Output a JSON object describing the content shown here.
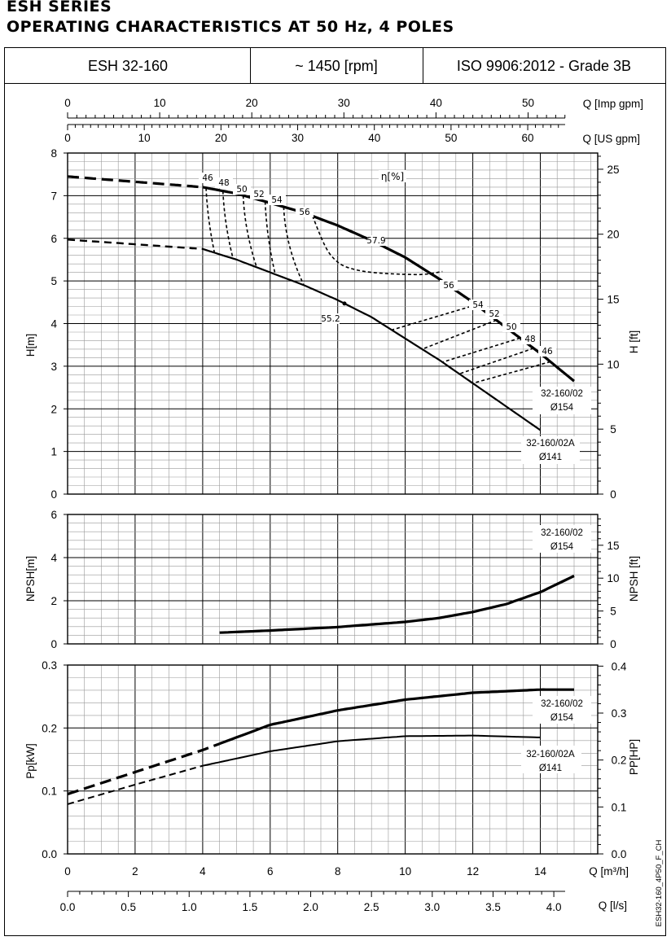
{
  "header": {
    "line1": "ESH SERIES",
    "line2": "OPERATING CHARACTERISTICS AT 50 Hz, 4 POLES"
  },
  "infobar": {
    "model": "ESH 32-160",
    "speed": "~ 1450 [rpm]",
    "standard": "ISO 9906:2012 - Grade 3B"
  },
  "side_code": "ESH32-160_4P50_F_CH",
  "axes": {
    "q_imp_label": "Q [Imp gpm]",
    "q_imp_ticks": [
      "0",
      "10",
      "20",
      "30",
      "40",
      "50"
    ],
    "q_us_label": "Q [US gpm]",
    "q_us_ticks": [
      "0",
      "10",
      "20",
      "30",
      "40",
      "50",
      "60"
    ],
    "q_m3h_label": "Q [m³/h]",
    "q_m3h_ticks": [
      "0",
      "2",
      "4",
      "6",
      "8",
      "10",
      "12",
      "14"
    ],
    "q_ls_label": "Q [l/s]",
    "q_ls_ticks": [
      "0.0",
      "0.5",
      "1.0",
      "1.5",
      "2.0",
      "2.5",
      "3.0",
      "3.5",
      "4.0"
    ],
    "h_m_label": "H[m]",
    "h_m_ticks": [
      "0",
      "1",
      "2",
      "3",
      "4",
      "5",
      "6",
      "7",
      "8"
    ],
    "h_ft_label": "H [ft]",
    "h_ft_ticks": [
      "0",
      "5",
      "10",
      "15",
      "20",
      "25"
    ],
    "npsh_m_label": "NPSH[m]",
    "npsh_m_ticks": [
      "0",
      "2",
      "4",
      "6"
    ],
    "npsh_ft_label": "NPSH [ft]",
    "npsh_ft_ticks": [
      "0",
      "5",
      "10",
      "15"
    ],
    "p_kw_label": "Pp[kW]",
    "p_kw_ticks": [
      "0.0",
      "0.1",
      "0.2",
      "0.3"
    ],
    "p_hp_label": "PP[HP]",
    "p_hp_ticks": [
      "0.0",
      "0.1",
      "0.2",
      "0.3",
      "0.4"
    ]
  },
  "chart_data": [
    {
      "type": "line",
      "panel": "head",
      "xlabel": "Q [m³/h]",
      "ylabel": "H[m]",
      "xlim": [
        0,
        15.7
      ],
      "ylim": [
        0,
        8
      ],
      "grid": true,
      "efficiency_label": "η[%]",
      "series": [
        {
          "name": "32-160/02 Ø154",
          "x": [
            0,
            4.0,
            5.0,
            6.0,
            7.0,
            8.0,
            9.0,
            10.0,
            11.0,
            12.0,
            13.0,
            14.0,
            15.0
          ],
          "y": [
            7.45,
            7.2,
            7.05,
            6.83,
            6.6,
            6.3,
            5.95,
            5.55,
            5.05,
            4.5,
            3.9,
            3.3,
            2.65
          ]
        },
        {
          "name": "32-160/02A Ø141",
          "x": [
            0,
            4.0,
            5.0,
            6.0,
            7.0,
            8.0,
            9.0,
            10.0,
            11.0,
            12.0,
            13.0,
            14.0
          ],
          "y": [
            5.97,
            5.75,
            5.5,
            5.2,
            4.9,
            4.55,
            4.15,
            3.65,
            3.15,
            2.6,
            2.05,
            1.5
          ]
        }
      ],
      "efficiency_labels": [
        "46",
        "48",
        "50",
        "52",
        "54",
        "56",
        "57.9",
        "56",
        "54",
        "52",
        "50",
        "48",
        "46",
        "55.2"
      ],
      "curve_labels": [
        {
          "line1": "32-160/02",
          "line2": "Ø154"
        },
        {
          "line1": "32-160/02A",
          "line2": "Ø141"
        }
      ]
    },
    {
      "type": "line",
      "panel": "npsh",
      "xlabel": "Q [m³/h]",
      "ylabel": "NPSH[m]",
      "xlim": [
        0,
        15.7
      ],
      "ylim": [
        0,
        6
      ],
      "grid": true,
      "series": [
        {
          "name": "32-160/02 Ø154",
          "x": [
            4.5,
            6,
            8,
            10,
            11,
            12,
            13,
            14,
            15
          ],
          "y": [
            0.52,
            0.62,
            0.78,
            1.02,
            1.2,
            1.48,
            1.85,
            2.4,
            3.15
          ]
        }
      ],
      "curve_labels": [
        {
          "line1": "32-160/02",
          "line2": "Ø154"
        }
      ]
    },
    {
      "type": "line",
      "panel": "power",
      "xlabel": "Q [m³/h]",
      "ylabel": "Pp[kW]",
      "xlim": [
        0,
        15.7
      ],
      "ylim": [
        0,
        0.3
      ],
      "grid": true,
      "series": [
        {
          "name": "32-160/02 Ø154",
          "x": [
            0,
            2,
            4,
            6,
            8,
            10,
            12,
            14,
            15
          ],
          "y": [
            0.095,
            0.13,
            0.165,
            0.205,
            0.228,
            0.245,
            0.256,
            0.261,
            0.261
          ]
        },
        {
          "name": "32-160/02A Ø141",
          "x": [
            0,
            2,
            4,
            6,
            8,
            10,
            12,
            14
          ],
          "y": [
            0.079,
            0.11,
            0.14,
            0.163,
            0.179,
            0.187,
            0.188,
            0.185
          ]
        }
      ],
      "curve_labels": [
        {
          "line1": "32-160/02",
          "line2": "Ø154"
        },
        {
          "line1": "32-160/02A",
          "line2": "Ø141"
        }
      ]
    }
  ]
}
